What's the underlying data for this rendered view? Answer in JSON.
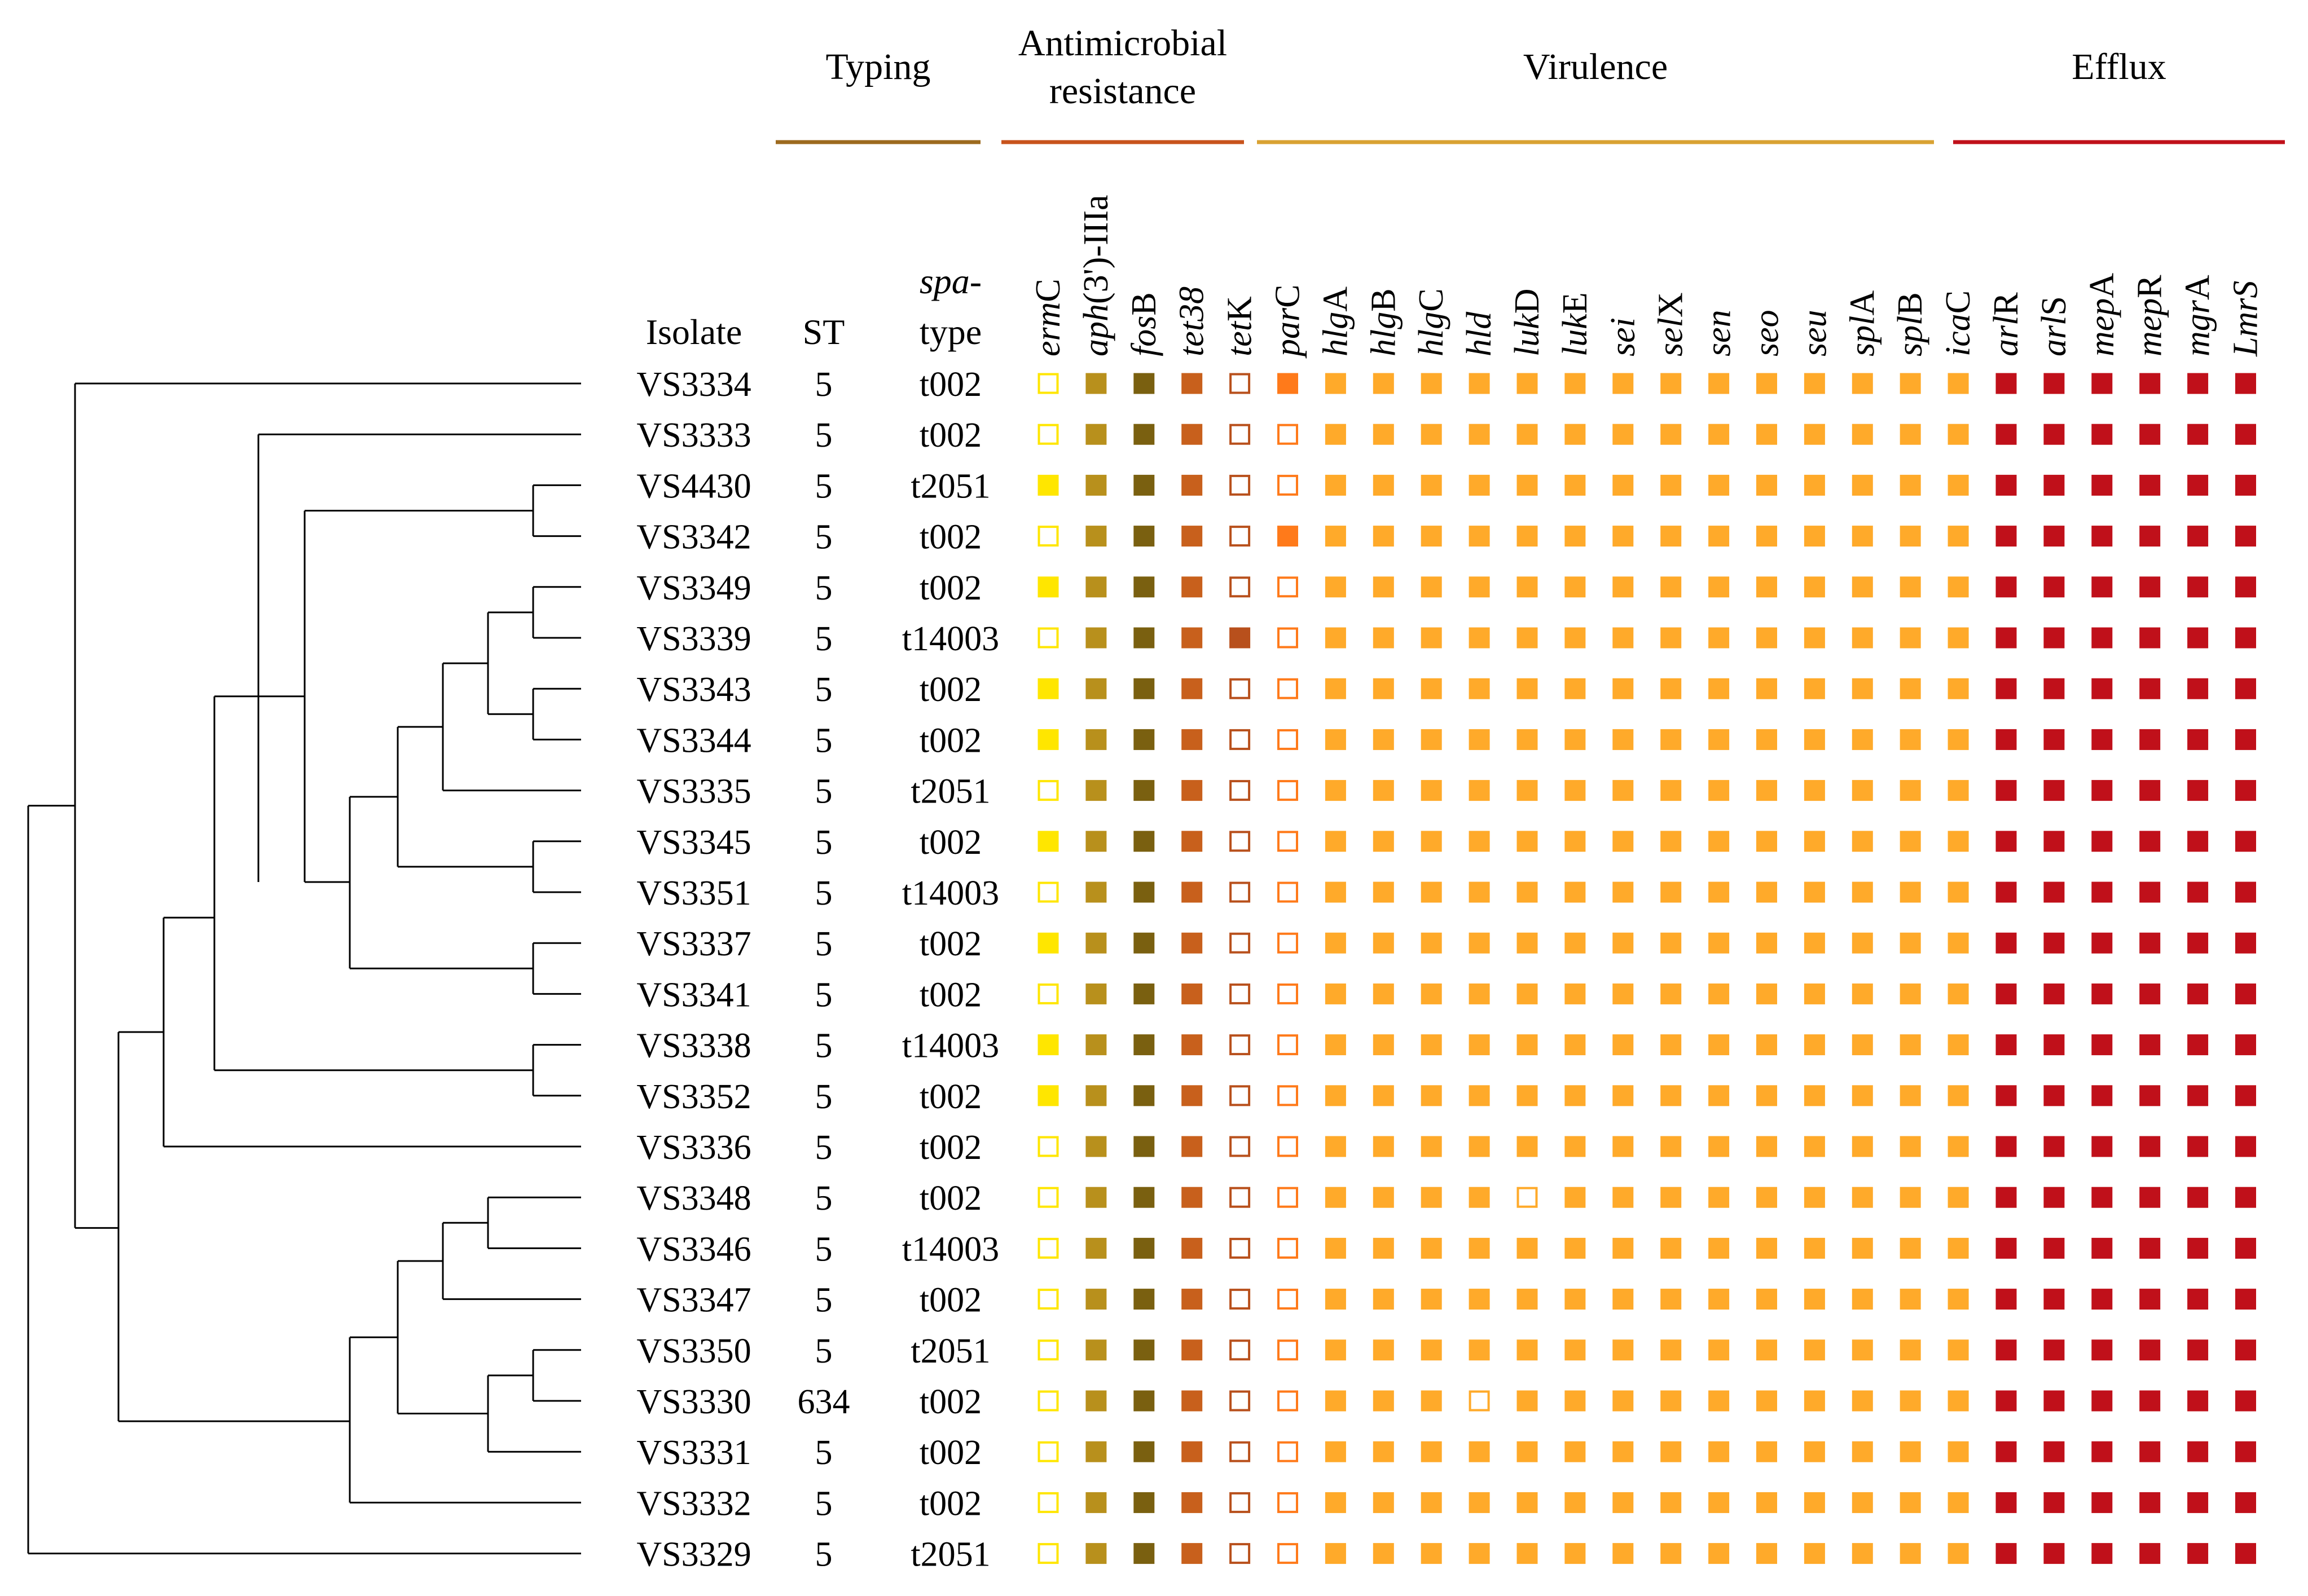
{
  "groups": [
    {
      "name": "Typing",
      "lines": [
        "Typing"
      ],
      "color": "#9C6A1E"
    },
    {
      "name": "Antimicrobial resistance",
      "lines": [
        "Antimicrobial",
        "resistance"
      ],
      "color": "#C8531C"
    },
    {
      "name": "Virulence",
      "lines": [
        "Virulence"
      ],
      "color": "#D9A233"
    },
    {
      "name": "Efflux",
      "lines": [
        "Efflux"
      ],
      "color": "#C0101A"
    }
  ],
  "columns": {
    "isolate": "Isolate",
    "st": "ST",
    "spa_line1": "spa-",
    "spa_line2": "type"
  },
  "genes": [
    {
      "group": "Antimicrobial resistance",
      "parts": [
        {
          "t": "erm",
          "i": true
        },
        {
          "t": "C",
          "i": false
        }
      ],
      "color": "#FFE600"
    },
    {
      "group": "Antimicrobial resistance",
      "parts": [
        {
          "t": "aph",
          "i": true
        },
        {
          "t": "(3')-IIIa",
          "i": false
        }
      ],
      "color": "#B8901C"
    },
    {
      "group": "Antimicrobial resistance",
      "parts": [
        {
          "t": "fos",
          "i": true
        },
        {
          "t": "B",
          "i": false
        }
      ],
      "color": "#7A6010"
    },
    {
      "group": "Antimicrobial resistance",
      "parts": [
        {
          "t": "tet38",
          "i": true
        }
      ],
      "color": "#C8601C"
    },
    {
      "group": "Antimicrobial resistance",
      "parts": [
        {
          "t": "tet",
          "i": true
        },
        {
          "t": "K",
          "i": false
        }
      ],
      "color": "#B8501C"
    },
    {
      "group": "Antimicrobial resistance",
      "parts": [
        {
          "t": "par",
          "i": true
        },
        {
          "t": "C",
          "i": false
        }
      ],
      "color": "#FF7A1A"
    },
    {
      "group": "Virulence",
      "parts": [
        {
          "t": "hlg",
          "i": true
        },
        {
          "t": "A",
          "i": false
        }
      ],
      "color": "#FFAA2A"
    },
    {
      "group": "Virulence",
      "parts": [
        {
          "t": "hlg",
          "i": true
        },
        {
          "t": "B",
          "i": false
        }
      ],
      "color": "#FFAA2A"
    },
    {
      "group": "Virulence",
      "parts": [
        {
          "t": "hlg",
          "i": true
        },
        {
          "t": "C",
          "i": false
        }
      ],
      "color": "#FFAA2A"
    },
    {
      "group": "Virulence",
      "parts": [
        {
          "t": "hld",
          "i": true
        }
      ],
      "color": "#FFAA2A"
    },
    {
      "group": "Virulence",
      "parts": [
        {
          "t": "luk",
          "i": true
        },
        {
          "t": "D",
          "i": false
        }
      ],
      "color": "#FFAA2A"
    },
    {
      "group": "Virulence",
      "parts": [
        {
          "t": "luk",
          "i": true
        },
        {
          "t": "E",
          "i": false
        }
      ],
      "color": "#FFAA2A"
    },
    {
      "group": "Virulence",
      "parts": [
        {
          "t": "sei",
          "i": true
        }
      ],
      "color": "#FFAA2A"
    },
    {
      "group": "Virulence",
      "parts": [
        {
          "t": "sel",
          "i": true
        },
        {
          "t": "X",
          "i": false
        }
      ],
      "color": "#FFAA2A"
    },
    {
      "group": "Virulence",
      "parts": [
        {
          "t": "sen",
          "i": true
        }
      ],
      "color": "#FFAA2A"
    },
    {
      "group": "Virulence",
      "parts": [
        {
          "t": "seo",
          "i": true
        }
      ],
      "color": "#FFAA2A"
    },
    {
      "group": "Virulence",
      "parts": [
        {
          "t": "seu",
          "i": true
        }
      ],
      "color": "#FFAA2A"
    },
    {
      "group": "Virulence",
      "parts": [
        {
          "t": "spl",
          "i": true
        },
        {
          "t": "A",
          "i": false
        }
      ],
      "color": "#FFAA2A"
    },
    {
      "group": "Virulence",
      "parts": [
        {
          "t": "spl",
          "i": true
        },
        {
          "t": "B",
          "i": false
        }
      ],
      "color": "#FFAA2A"
    },
    {
      "group": "Virulence",
      "parts": [
        {
          "t": "ica",
          "i": true
        },
        {
          "t": "C",
          "i": false
        }
      ],
      "color": "#FFAA2A"
    },
    {
      "group": "Efflux",
      "parts": [
        {
          "t": "arl",
          "i": true
        },
        {
          "t": "R",
          "i": false
        }
      ],
      "color": "#C0101A"
    },
    {
      "group": "Efflux",
      "parts": [
        {
          "t": "arl",
          "i": true
        },
        {
          "t": "S",
          "i": false
        }
      ],
      "color": "#C0101A"
    },
    {
      "group": "Efflux",
      "parts": [
        {
          "t": "mep",
          "i": true
        },
        {
          "t": "A",
          "i": false
        }
      ],
      "color": "#C0101A"
    },
    {
      "group": "Efflux",
      "parts": [
        {
          "t": "mep",
          "i": true
        },
        {
          "t": "R",
          "i": false
        }
      ],
      "color": "#C0101A"
    },
    {
      "group": "Efflux",
      "parts": [
        {
          "t": "mgr",
          "i": true
        },
        {
          "t": "A",
          "i": false
        }
      ],
      "color": "#C0101A"
    },
    {
      "group": "Efflux",
      "parts": [
        {
          "t": "LmrS",
          "i": true
        }
      ],
      "color": "#C0101A"
    }
  ],
  "isolates": [
    {
      "name": "VS3334",
      "st": "5",
      "spa": "t002",
      "profile": "01110111111111111111111111"
    },
    {
      "name": "VS3333",
      "st": "5",
      "spa": "t002",
      "profile": "01110011111111111111111111"
    },
    {
      "name": "VS4430",
      "st": "5",
      "spa": "t2051",
      "profile": "11110011111111111111111111"
    },
    {
      "name": "VS3342",
      "st": "5",
      "spa": "t002",
      "profile": "01110111111111111111111111"
    },
    {
      "name": "VS3349",
      "st": "5",
      "spa": "t002",
      "profile": "11110011111111111111111111"
    },
    {
      "name": "VS3339",
      "st": "5",
      "spa": "t14003",
      "profile": "01111011111111111111111111"
    },
    {
      "name": "VS3343",
      "st": "5",
      "spa": "t002",
      "profile": "11110011111111111111111111"
    },
    {
      "name": "VS3344",
      "st": "5",
      "spa": "t002",
      "profile": "11110011111111111111111111"
    },
    {
      "name": "VS3335",
      "st": "5",
      "spa": "t2051",
      "profile": "01110011111111111111111111"
    },
    {
      "name": "VS3345",
      "st": "5",
      "spa": "t002",
      "profile": "11110011111111111111111111"
    },
    {
      "name": "VS3351",
      "st": "5",
      "spa": "t14003",
      "profile": "01110011111111111111111111"
    },
    {
      "name": "VS3337",
      "st": "5",
      "spa": "t002",
      "profile": "11110011111111111111111111"
    },
    {
      "name": "VS3341",
      "st": "5",
      "spa": "t002",
      "profile": "01110011111111111111111111"
    },
    {
      "name": "VS3338",
      "st": "5",
      "spa": "t14003",
      "profile": "11110011111111111111111111"
    },
    {
      "name": "VS3352",
      "st": "5",
      "spa": "t002",
      "profile": "11110011111111111111111111"
    },
    {
      "name": "VS3336",
      "st": "5",
      "spa": "t002",
      "profile": "01110011111111111111111111"
    },
    {
      "name": "VS3348",
      "st": "5",
      "spa": "t002",
      "profile": "01110011110111111111111111"
    },
    {
      "name": "VS3346",
      "st": "5",
      "spa": "t14003",
      "profile": "01110011111111111111111111"
    },
    {
      "name": "VS3347",
      "st": "5",
      "spa": "t002",
      "profile": "01110011111111111111111111"
    },
    {
      "name": "VS3350",
      "st": "5",
      "spa": "t2051",
      "profile": "01110011111111111111111111"
    },
    {
      "name": "VS3330",
      "st": "634",
      "spa": "t002",
      "profile": "01110011101111111111111111"
    },
    {
      "name": "VS3331",
      "st": "5",
      "spa": "t002",
      "profile": "01110011111111111111111111"
    },
    {
      "name": "VS3332",
      "st": "5",
      "spa": "t002",
      "profile": "01110011111111111111111111"
    },
    {
      "name": "VS3329",
      "st": "5",
      "spa": "t2051",
      "profile": "01110011111111111111111111"
    }
  ]
}
